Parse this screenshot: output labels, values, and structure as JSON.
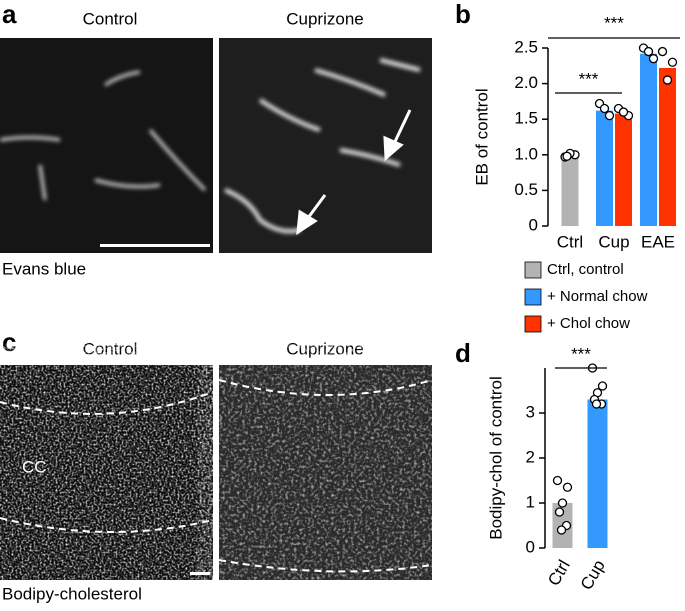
{
  "panels": {
    "a": {
      "label": "a",
      "left_title": "Control",
      "right_title": "Cuprizone",
      "caption": "Evans blue"
    },
    "b": {
      "label": "b"
    },
    "c": {
      "label": "c",
      "left_title": "Control",
      "right_title": "Cuprizone",
      "region": "CC",
      "caption": "Bodipy-cholesterol"
    },
    "d": {
      "label": "d"
    }
  },
  "chart_data": [
    {
      "type": "bar",
      "y_label": "EB of control",
      "categories": [
        "Ctrl",
        "Cup",
        "EAE"
      ],
      "series": [
        {
          "name": "Ctrl, control",
          "color": "#b3b3b3",
          "values": [
            1.0,
            null,
            null
          ],
          "points": [
            [
              0.97,
              1.0,
              1.02,
              0.98
            ],
            null,
            null
          ]
        },
        {
          "name": "+ Normal chow",
          "color": "#3399ff",
          "values": [
            null,
            1.62,
            2.42
          ],
          "points": [
            null,
            [
              1.72,
              1.55,
              1.65
            ],
            [
              2.5,
              2.35,
              2.45
            ]
          ]
        },
        {
          "name": "+ Chol chow",
          "color": "#ff3300",
          "values": [
            null,
            1.58,
            2.22
          ],
          "points": [
            null,
            [
              1.65,
              1.55,
              1.6
            ],
            [
              2.45,
              2.3,
              2.05
            ]
          ]
        }
      ],
      "ylim": [
        0,
        2.5
      ],
      "yticks": [
        0,
        0.5,
        {
          "value": 1,
          "label": "1.0"
        },
        1.5,
        {
          "value": 2,
          "label": "2.0"
        },
        2.5
      ],
      "annotations": [
        "***",
        "***"
      ]
    },
    {
      "type": "bar",
      "y_label": "Bodipy-chol of control",
      "categories": [
        "Ctrl",
        "Cup"
      ],
      "values": [
        1.0,
        3.3
      ],
      "colors": [
        "#b3b3b3",
        "#3399ff"
      ],
      "points": [
        [
          1.5,
          1.35,
          1.0,
          0.8,
          0.5,
          0.4
        ],
        [
          4.0,
          3.6,
          3.45,
          3.3,
          3.2,
          3.2
        ]
      ],
      "ylim": [
        0,
        4
      ],
      "yticks": [
        0,
        1,
        2,
        3
      ],
      "annotations": [
        "***"
      ]
    }
  ]
}
